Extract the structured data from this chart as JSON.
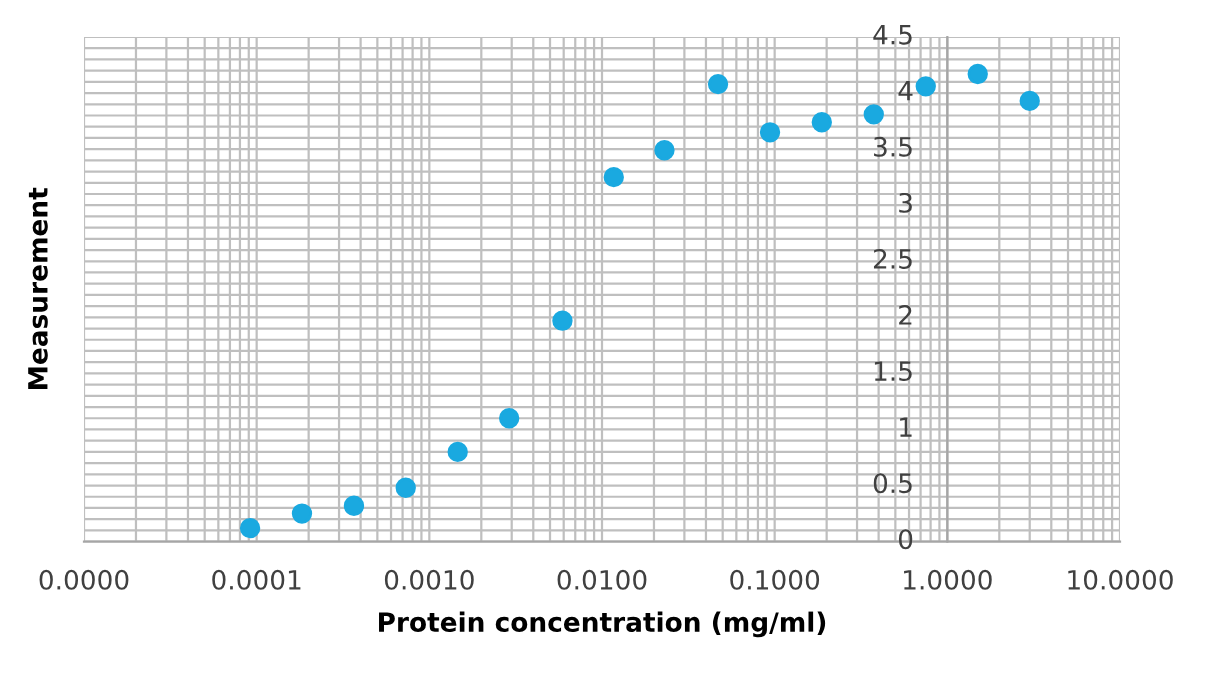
{
  "chart_data": {
    "type": "scatter",
    "xlabel": "Protein concentration (mg/ml)",
    "ylabel": "Measurement",
    "log": "x",
    "marker": "circle",
    "grid": true,
    "xlim": [
      1e-05,
      10
    ],
    "xticks": [
      {
        "value": 1e-05,
        "label": "0.0000"
      },
      {
        "value": 0.0001,
        "label": "0.0001"
      },
      {
        "value": 0.001,
        "label": "0.0010"
      },
      {
        "value": 0.01,
        "label": "0.0100"
      },
      {
        "value": 0.1,
        "label": "0.1000"
      },
      {
        "value": 1,
        "label": "1.0000"
      },
      {
        "value": 10,
        "label": "10.0000"
      }
    ],
    "ylim": [
      0,
      4.5
    ],
    "yticks": [
      0,
      0.5,
      1,
      1.5,
      2,
      2.5,
      3,
      3.5,
      4,
      4.5
    ],
    "series": [
      {
        "color": "#1aa9e0",
        "x": [
          9.16e-05,
          0.000183,
          0.000366,
          0.00073,
          0.00146,
          0.0029,
          0.0059,
          0.0117,
          0.023,
          0.047,
          0.094,
          0.1875,
          0.375,
          0.75,
          1.5,
          3.0
        ],
        "values": [
          0.12,
          0.25,
          0.32,
          0.48,
          0.8,
          1.1,
          1.97,
          3.25,
          3.49,
          4.08,
          3.65,
          3.74,
          3.81,
          4.06,
          4.17,
          3.93
        ]
      }
    ]
  }
}
